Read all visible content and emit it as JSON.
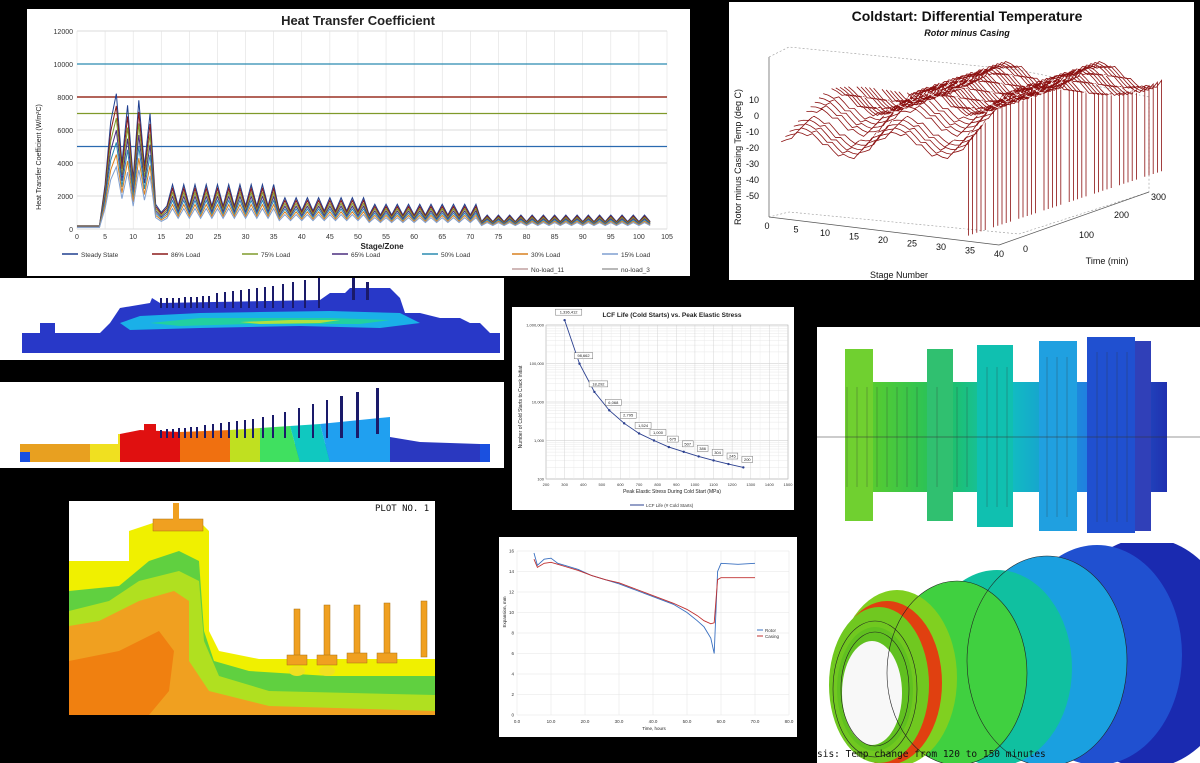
{
  "htc": {
    "title": "Heat Transfer Coefficient",
    "ylabel": "Heat Transfer Coefficient (W/m²C)",
    "xlabel": "Stage/Zone",
    "yticks": [
      "0",
      "2000",
      "4000",
      "6000",
      "8000",
      "10000",
      "12000"
    ],
    "xticks": [
      "0",
      "5",
      "10",
      "15",
      "20",
      "25",
      "30",
      "35",
      "40",
      "45",
      "50",
      "55",
      "60",
      "65",
      "70",
      "75",
      "80",
      "85",
      "90",
      "95",
      "100",
      "105"
    ],
    "legend": [
      "Steady State",
      "86% Load",
      "75% Load",
      "65% Load",
      "50% Load",
      "30% Load",
      "15% Load",
      "No-load_11",
      "no-load_3"
    ],
    "colors": [
      "#1f3f8f",
      "#8b1a1a",
      "#7f9a2a",
      "#4b2d7f",
      "#2a8ab0",
      "#d98020",
      "#7f9fd0",
      "#c0a0a0",
      "#a0a0a0"
    ],
    "hlines": [
      {
        "y": 10000,
        "color": "#2a8ab0"
      },
      {
        "y": 8000,
        "color": "#d98020"
      },
      {
        "y": 8000,
        "color": "#8b1a1a"
      },
      {
        "y": 7000,
        "color": "#7f9a2a"
      },
      {
        "y": 5000,
        "color": "#2a6ab0"
      }
    ]
  },
  "coldstart": {
    "title": "Coldstart: Differential Temperature",
    "subtitle": "Rotor minus Casing",
    "zlabel": "Rotor minus Casing Temp (deg C)",
    "xlabel": "Stage Number",
    "ylabel": "Time (min)",
    "zticks": [
      "10",
      "0",
      "-10",
      "-20",
      "-30",
      "-40",
      "-50"
    ],
    "xticks": [
      "0",
      "5",
      "10",
      "15",
      "20",
      "25",
      "30",
      "35",
      "40"
    ],
    "yticks": [
      "0",
      "100",
      "200",
      "300"
    ]
  },
  "lcf": {
    "title": "LCF Life (Cold Starts) vs. Peak Elastic Stress",
    "ylabel": "Number of Cold Starts to Crack Initiat",
    "xlabel": "Peak Elastic Stress During Cold Start (MPa)",
    "yticks": [
      "1,000,000",
      "100,000",
      "10,000",
      "1,000",
      "100"
    ],
    "xticks": [
      "200",
      "300",
      "400",
      "500",
      "600",
      "700",
      "800",
      "900",
      "1000",
      "1100",
      "1200",
      "1300",
      "1400",
      "1500"
    ],
    "legend": "LCF Life (# Cold Starts)",
    "points": [
      {
        "x": 300,
        "y": 1336412,
        "label": "1,336,412"
      },
      {
        "x": 380,
        "y": 98662,
        "label": "98,662"
      },
      {
        "x": 460,
        "y": 18292,
        "label": "18,292"
      },
      {
        "x": 540,
        "y": 6068,
        "label": "6,068"
      },
      {
        "x": 620,
        "y": 2795,
        "label": "2,795"
      },
      {
        "x": 700,
        "y": 1524,
        "label": "1,524"
      },
      {
        "x": 780,
        "y": 1000,
        "label": "1,000"
      },
      {
        "x": 860,
        "y": 675,
        "label": "675"
      },
      {
        "x": 940,
        "y": 507,
        "label": "507"
      },
      {
        "x": 1020,
        "y": 386,
        "label": "386"
      },
      {
        "x": 1100,
        "y": 304,
        "label": "304"
      },
      {
        "x": 1180,
        "y": 245,
        "label": "245"
      },
      {
        "x": 1260,
        "y": 200,
        "label": "200"
      }
    ]
  },
  "expansion": {
    "ylabel": "Expansion, mm",
    "xlabel": "Time, hours",
    "yticks": [
      "0",
      "2",
      "4",
      "6",
      "8",
      "10",
      "12",
      "14",
      "16"
    ],
    "xticks": [
      "0.0",
      "10.0",
      "20.0",
      "30.0",
      "40.0",
      "50.0",
      "60.0",
      "70.0",
      "80.0"
    ],
    "legend": [
      "Rotor",
      "Casing"
    ],
    "colors": [
      "#3a70c0",
      "#c03030"
    ]
  },
  "fea": {
    "plot_label": "PLOT NO.   1",
    "caption": "sis: Temp change from 120 to 150 minutes"
  }
}
